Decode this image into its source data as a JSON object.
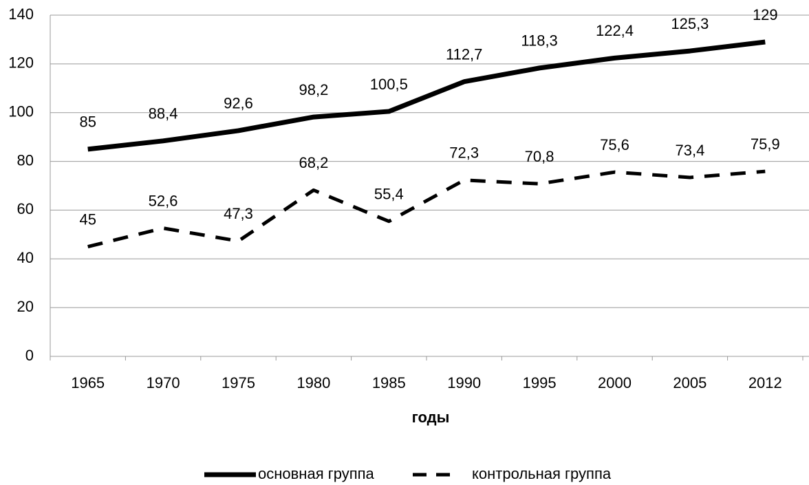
{
  "chart_data": {
    "type": "line",
    "x_label": "годы",
    "categories": [
      "1965",
      "1970",
      "1975",
      "1980",
      "1985",
      "1990",
      "1995",
      "2000",
      "2005",
      "2012"
    ],
    "series": [
      {
        "name": "основная группа",
        "color": "#000000",
        "dash": false,
        "values": [
          85,
          88.4,
          92.6,
          98.2,
          100.5,
          112.7,
          118.3,
          122.4,
          125.3,
          129
        ],
        "value_labels": [
          "85",
          "88,4",
          "92,6",
          "98,2",
          "100,5",
          "112,7",
          "118,3",
          "122,4",
          "125,3",
          "129"
        ]
      },
      {
        "name": "контрольная группа",
        "color": "#000000",
        "dash": true,
        "values": [
          45,
          52.6,
          47.3,
          68.2,
          55.4,
          72.3,
          70.8,
          75.6,
          73.4,
          75.9
        ],
        "value_labels": [
          "45",
          "52,6",
          "47,3",
          "68,2",
          "55,4",
          "72,3",
          "70,8",
          "75,6",
          "73,4",
          "75,9"
        ]
      }
    ],
    "ylim": [
      0,
      140
    ],
    "yticks": [
      0,
      20,
      40,
      60,
      80,
      100,
      120,
      140
    ],
    "grid": true,
    "legend": "bottom"
  }
}
